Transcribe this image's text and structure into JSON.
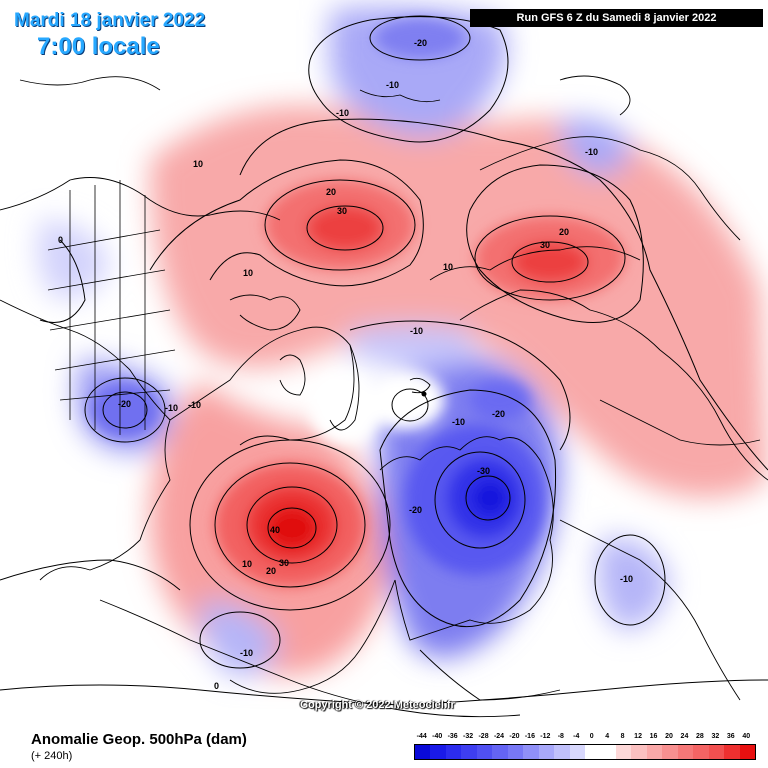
{
  "header": {
    "date": "Mardi 18 janvier 2022",
    "hour": "7:00 locale",
    "run": "Run GFS 6 Z du Samedi 8 janvier 2022"
  },
  "footer": {
    "copyright": "Copyright © 2022 Meteociel.fr",
    "caption": "Anomalie Geop. 500hPa (dam)",
    "subcaption": "(+ 240h)"
  },
  "legend": {
    "ticks": [
      "-44",
      "-40",
      "-36",
      "-32",
      "-28",
      "-24",
      "-20",
      "-16",
      "-12",
      "-8",
      "-4",
      "0",
      "4",
      "8",
      "12",
      "16",
      "20",
      "24",
      "28",
      "32",
      "36",
      "40"
    ],
    "colors": [
      "#0a0ad8",
      "#1a1ae8",
      "#2c2cee",
      "#3e3ef0",
      "#5050f2",
      "#6464f4",
      "#7878f6",
      "#9090f8",
      "#a8a8fa",
      "#c0c0fb",
      "#d8d8fd",
      "#ffffff",
      "#ffffff",
      "#fdd8d8",
      "#fbc0c0",
      "#faa8a8",
      "#f89090",
      "#f67878",
      "#f46464",
      "#f25050",
      "#ee3030",
      "#e81010"
    ]
  },
  "contour_labels": [
    {
      "id": "west-pacific-low",
      "text": "-20"
    },
    {
      "id": "pacific-ring-a",
      "text": "-10"
    },
    {
      "id": "pacific-ring-b",
      "text": "-10"
    },
    {
      "id": "alaska-ring-20",
      "text": "20"
    },
    {
      "id": "alaska-core-30",
      "text": "30"
    },
    {
      "id": "alaska-ring-10",
      "text": "10"
    },
    {
      "id": "north-pacific-10",
      "text": "10"
    },
    {
      "id": "canada-ring-10",
      "text": "10"
    },
    {
      "id": "us-low-20",
      "text": "-20"
    },
    {
      "id": "us-low-10-a",
      "text": "-10"
    },
    {
      "id": "us-low-10-b",
      "text": "-10"
    },
    {
      "id": "west-atlantic-zero",
      "text": "0"
    },
    {
      "id": "arctic-low-10",
      "text": "-10"
    },
    {
      "id": "arctic-low-10-b",
      "text": "-10"
    },
    {
      "id": "barents-low-20",
      "text": "-20"
    },
    {
      "id": "siberia-core-30",
      "text": "30"
    },
    {
      "id": "siberia-ring-20",
      "text": "20"
    },
    {
      "id": "japan-low-10",
      "text": "-10"
    },
    {
      "id": "atlantic-core-40",
      "text": "40"
    },
    {
      "id": "atlantic-ring-30",
      "text": "30"
    },
    {
      "id": "atlantic-ring-20",
      "text": "20"
    },
    {
      "id": "atlantic-ring-10",
      "text": "10"
    },
    {
      "id": "europe-core-30",
      "text": "-30"
    },
    {
      "id": "europe-ring-20",
      "text": "-20"
    },
    {
      "id": "asia-low-10",
      "text": "-10"
    },
    {
      "id": "africa-low-10",
      "text": "-10"
    },
    {
      "id": "south-zero",
      "text": "0"
    }
  ]
}
